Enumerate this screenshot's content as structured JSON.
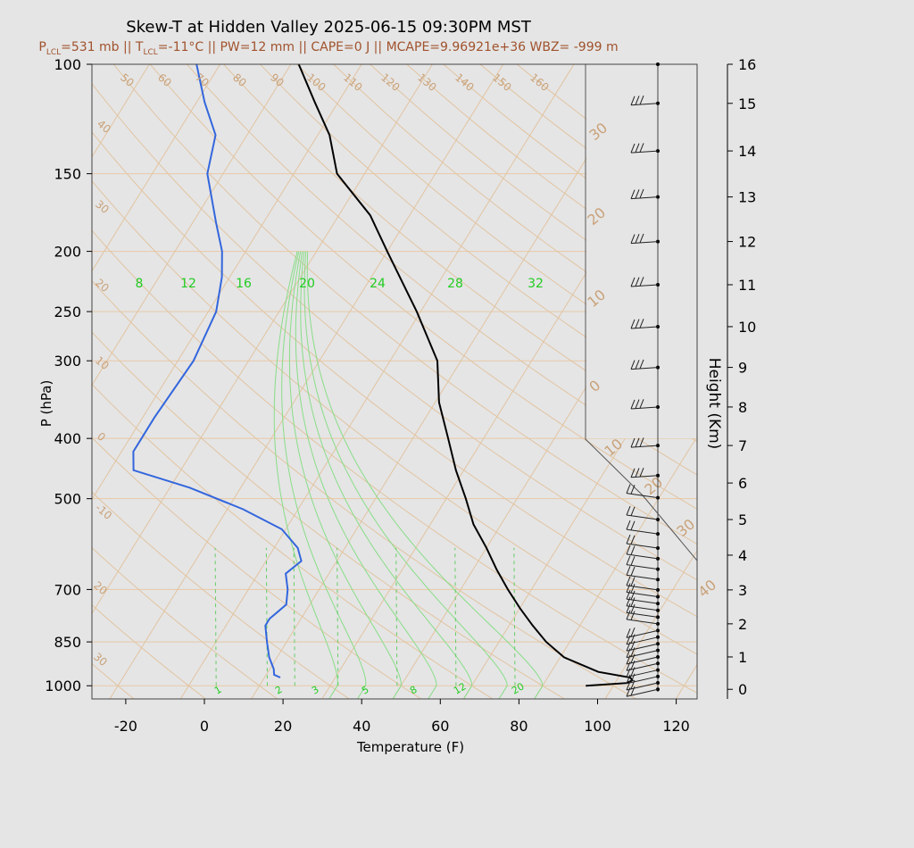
{
  "chart_data": {
    "type": "skew-t",
    "title": "Skew-T at Hidden Valley 2025-06-15 09:30PM MST",
    "subtitle": {
      "lcl_p_label": "P",
      "lcl_p_sub": "LCL",
      "lcl_p_val": "=531 mb || ",
      "lcl_t_label": "T",
      "lcl_t_sub": "LCL",
      "lcl_t_val": "=-11°C || PW=12 mm || CAPE=0 J || MCAPE=9.96921e+36 WBZ= -999 m"
    },
    "xlabel": "Temperature (F)",
    "ylabel": "P (hPa)",
    "y2label": "Height (Km)",
    "xlim": [
      -28,
      125
    ],
    "ylim_hpa": [
      1050,
      100
    ],
    "x_ticks": [
      -20,
      0,
      20,
      40,
      60,
      80,
      100,
      120
    ],
    "p_ticks": [
      1000,
      850,
      700,
      500,
      400,
      300,
      250,
      200,
      150,
      100
    ],
    "height_ticks_km": [
      0,
      1,
      2,
      3,
      4,
      5,
      6,
      7,
      8,
      9,
      10,
      11,
      12,
      13,
      14,
      15,
      16
    ],
    "isotherm_labels_c": [
      -30,
      -20,
      -10,
      0,
      10,
      20,
      30,
      40,
      50,
      60,
      70,
      80,
      90,
      100,
      110,
      120,
      130,
      140,
      150,
      160
    ],
    "mixing_ratio_top_labels": [
      "8",
      "12",
      "16",
      "20",
      "24",
      "28",
      "32"
    ],
    "mixing_ratio_bottom_labels": [
      "1",
      "2",
      "3",
      "5",
      "8",
      "12",
      "20"
    ],
    "windbarb_inset_labels_c": [
      "30",
      "20",
      "10",
      "0",
      "10",
      "20",
      "30",
      "40"
    ],
    "temperature_profile": {
      "name": "Temperature",
      "color": "#000000",
      "points_p_f": [
        [
          1000,
          97
        ],
        [
          990,
          107
        ],
        [
          980,
          108
        ],
        [
          970,
          107
        ],
        [
          950,
          98
        ],
        [
          900,
          87
        ],
        [
          850,
          80
        ],
        [
          800,
          74
        ],
        [
          750,
          68
        ],
        [
          700,
          62
        ],
        [
          650,
          56
        ],
        [
          600,
          50
        ],
        [
          550,
          43
        ],
        [
          500,
          37
        ],
        [
          450,
          30
        ],
        [
          400,
          23
        ],
        [
          350,
          15
        ],
        [
          300,
          8
        ],
        [
          250,
          -5
        ],
        [
          200,
          -22
        ],
        [
          175,
          -32
        ],
        [
          150,
          -47
        ],
        [
          130,
          -55
        ],
        [
          115,
          -64
        ],
        [
          100,
          -74
        ]
      ]
    },
    "dewpoint_profile": {
      "name": "Dewpoint",
      "color": "#3366dd",
      "points_p_f": [
        [
          970,
          18
        ],
        [
          960,
          16
        ],
        [
          940,
          15
        ],
        [
          900,
          12
        ],
        [
          850,
          9
        ],
        [
          800,
          6
        ],
        [
          780,
          6
        ],
        [
          760,
          7
        ],
        [
          740,
          8
        ],
        [
          700,
          6
        ],
        [
          660,
          3
        ],
        [
          630,
          5
        ],
        [
          600,
          2
        ],
        [
          560,
          -5
        ],
        [
          520,
          -18
        ],
        [
          480,
          -35
        ],
        [
          450,
          -52
        ],
        [
          420,
          -55
        ],
        [
          400,
          -55
        ],
        [
          370,
          -55
        ],
        [
          300,
          -54
        ],
        [
          250,
          -56
        ],
        [
          220,
          -60
        ],
        [
          200,
          -64
        ],
        [
          180,
          -70
        ],
        [
          150,
          -80
        ],
        [
          130,
          -84
        ],
        [
          115,
          -92
        ],
        [
          100,
          -100
        ]
      ]
    },
    "wind_barb_heights_km": [
      0.0,
      0.2,
      0.4,
      0.6,
      0.8,
      1.0,
      1.2,
      1.4,
      1.6,
      1.8,
      2.0,
      2.2,
      2.4,
      2.6,
      2.8,
      3.0,
      3.3,
      3.6,
      3.9,
      4.2,
      4.6,
      5.0,
      5.6,
      6.2,
      7.0,
      8.0,
      9.0,
      10.0,
      11.0,
      12.0,
      13.0,
      14.0,
      15.0,
      16.0
    ],
    "grid": true
  }
}
